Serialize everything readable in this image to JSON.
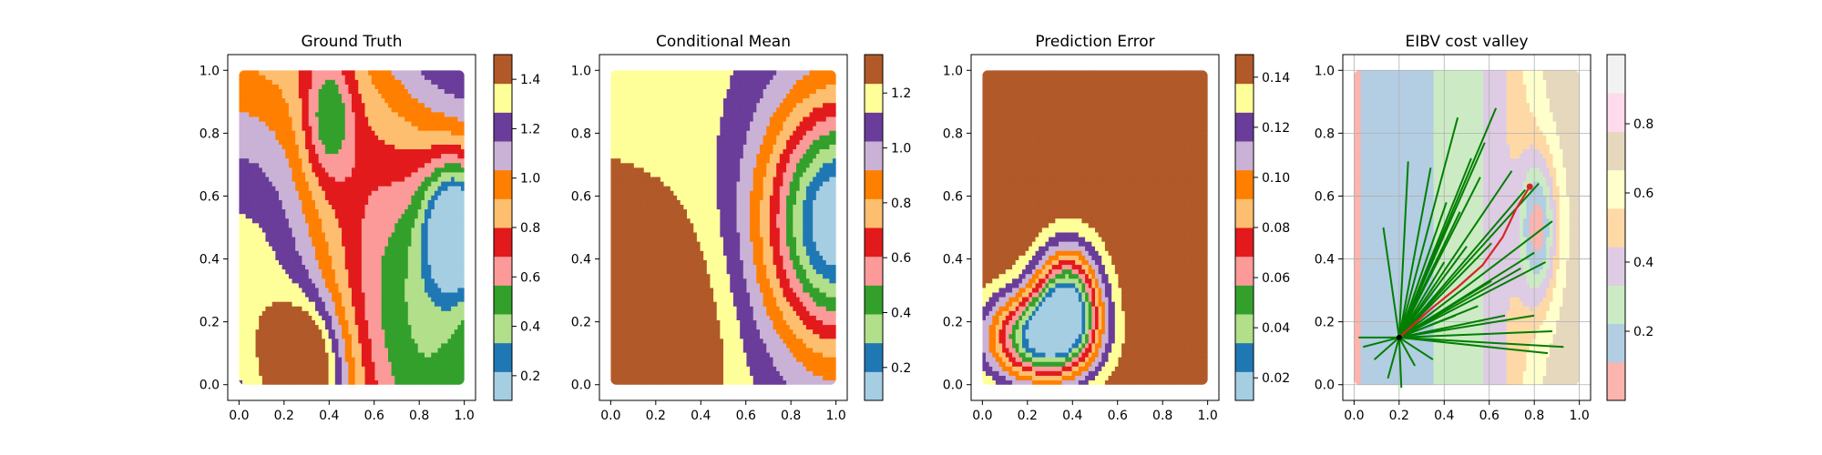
{
  "chart_data": [
    {
      "type": "heatmap",
      "title": "Ground Truth",
      "xlim": [
        -0.05,
        1.05
      ],
      "ylim": [
        -0.05,
        1.05
      ],
      "x_ticks": [
        "0.0",
        "0.2",
        "0.4",
        "0.6",
        "0.8",
        "1.0"
      ],
      "y_ticks": [
        "0.0",
        "0.2",
        "0.4",
        "0.6",
        "0.8",
        "1.0"
      ],
      "colorbar": {
        "range": [
          0.1,
          1.5
        ],
        "ticks": [
          "0.2",
          "0.4",
          "0.6",
          "0.8",
          "1.0",
          "1.2",
          "1.4"
        ]
      }
    },
    {
      "type": "heatmap",
      "title": "Conditional Mean",
      "xlim": [
        -0.05,
        1.05
      ],
      "ylim": [
        -0.05,
        1.05
      ],
      "x_ticks": [
        "0.0",
        "0.2",
        "0.4",
        "0.6",
        "0.8",
        "1.0"
      ],
      "y_ticks": [
        "0.0",
        "0.2",
        "0.4",
        "0.6",
        "0.8",
        "1.0"
      ],
      "colorbar": {
        "range": [
          0.08,
          1.34
        ],
        "ticks": [
          "0.2",
          "0.4",
          "0.6",
          "0.8",
          "1.0",
          "1.2"
        ]
      }
    },
    {
      "type": "heatmap",
      "title": "Prediction Error",
      "xlim": [
        -0.05,
        1.05
      ],
      "ylim": [
        -0.05,
        1.05
      ],
      "x_ticks": [
        "0.0",
        "0.2",
        "0.4",
        "0.6",
        "0.8",
        "1.0"
      ],
      "y_ticks": [
        "0.0",
        "0.2",
        "0.4",
        "0.6",
        "0.8",
        "1.0"
      ],
      "colorbar": {
        "range": [
          0.011,
          0.149
        ],
        "ticks": [
          "0.02",
          "0.04",
          "0.06",
          "0.08",
          "0.10",
          "0.12",
          "0.14"
        ]
      }
    },
    {
      "type": "heatmap",
      "title": "EIBV cost valley",
      "xlim": [
        -0.05,
        1.05
      ],
      "ylim": [
        -0.05,
        1.05
      ],
      "x_ticks": [
        "0.0",
        "0.2",
        "0.4",
        "0.6",
        "0.8",
        "1.0"
      ],
      "y_ticks": [
        "0.0",
        "0.2",
        "0.4",
        "0.6",
        "0.8",
        "1.0"
      ],
      "grid": true,
      "colorbar": {
        "range": [
          0.0,
          1.0
        ],
        "ticks": [
          "0.2",
          "0.4",
          "0.6",
          "0.8"
        ]
      },
      "start_point": [
        0.2,
        0.15
      ],
      "path": [
        [
          0.2,
          0.15
        ],
        [
          0.34,
          0.24
        ],
        [
          0.46,
          0.31
        ],
        [
          0.57,
          0.38
        ],
        [
          0.66,
          0.47
        ],
        [
          0.72,
          0.56
        ],
        [
          0.78,
          0.63
        ]
      ],
      "path_end": [
        0.78,
        0.63
      ],
      "candidate_endpoints": [
        [
          0.46,
          0.85
        ],
        [
          0.52,
          0.72
        ],
        [
          0.58,
          0.77
        ],
        [
          0.63,
          0.88
        ],
        [
          0.7,
          0.68
        ],
        [
          0.76,
          0.62
        ],
        [
          0.82,
          0.64
        ],
        [
          0.88,
          0.52
        ],
        [
          0.85,
          0.39
        ],
        [
          0.8,
          0.42
        ],
        [
          0.74,
          0.37
        ],
        [
          0.61,
          0.33
        ],
        [
          0.55,
          0.25
        ],
        [
          0.67,
          0.22
        ],
        [
          0.8,
          0.22
        ],
        [
          0.86,
          0.1
        ],
        [
          0.93,
          0.12
        ],
        [
          0.88,
          0.17
        ],
        [
          0.45,
          0.22
        ],
        [
          0.35,
          0.08
        ],
        [
          0.27,
          0.06
        ],
        [
          0.21,
          -0.01
        ],
        [
          0.15,
          0.02
        ],
        [
          0.09,
          0.08
        ],
        [
          0.04,
          0.12
        ],
        [
          0.02,
          0.15
        ],
        [
          0.13,
          0.5
        ],
        [
          0.34,
          0.69
        ],
        [
          0.24,
          0.71
        ],
        [
          0.41,
          0.58
        ],
        [
          0.47,
          0.55
        ],
        [
          0.56,
          0.66
        ],
        [
          0.61,
          0.45
        ],
        [
          0.4,
          0.39
        ],
        [
          0.5,
          0.44
        ]
      ]
    }
  ],
  "palette": {
    "paired": [
      "#a6cee3",
      "#1f78b4",
      "#b2df8a",
      "#33a02c",
      "#fb9a99",
      "#e31a1c",
      "#fdbf6f",
      "#ff7f00",
      "#cab2d6",
      "#6a3d9a",
      "#ffff99",
      "#b15928"
    ],
    "pastel": [
      "#fbb4ae",
      "#b3cde3",
      "#ccebc5",
      "#decbe4",
      "#fed9a6",
      "#ffffcc",
      "#e5d8bd",
      "#fddaec",
      "#f2f2f2"
    ],
    "path_green": "#007f00",
    "path_red": "#d62728"
  }
}
